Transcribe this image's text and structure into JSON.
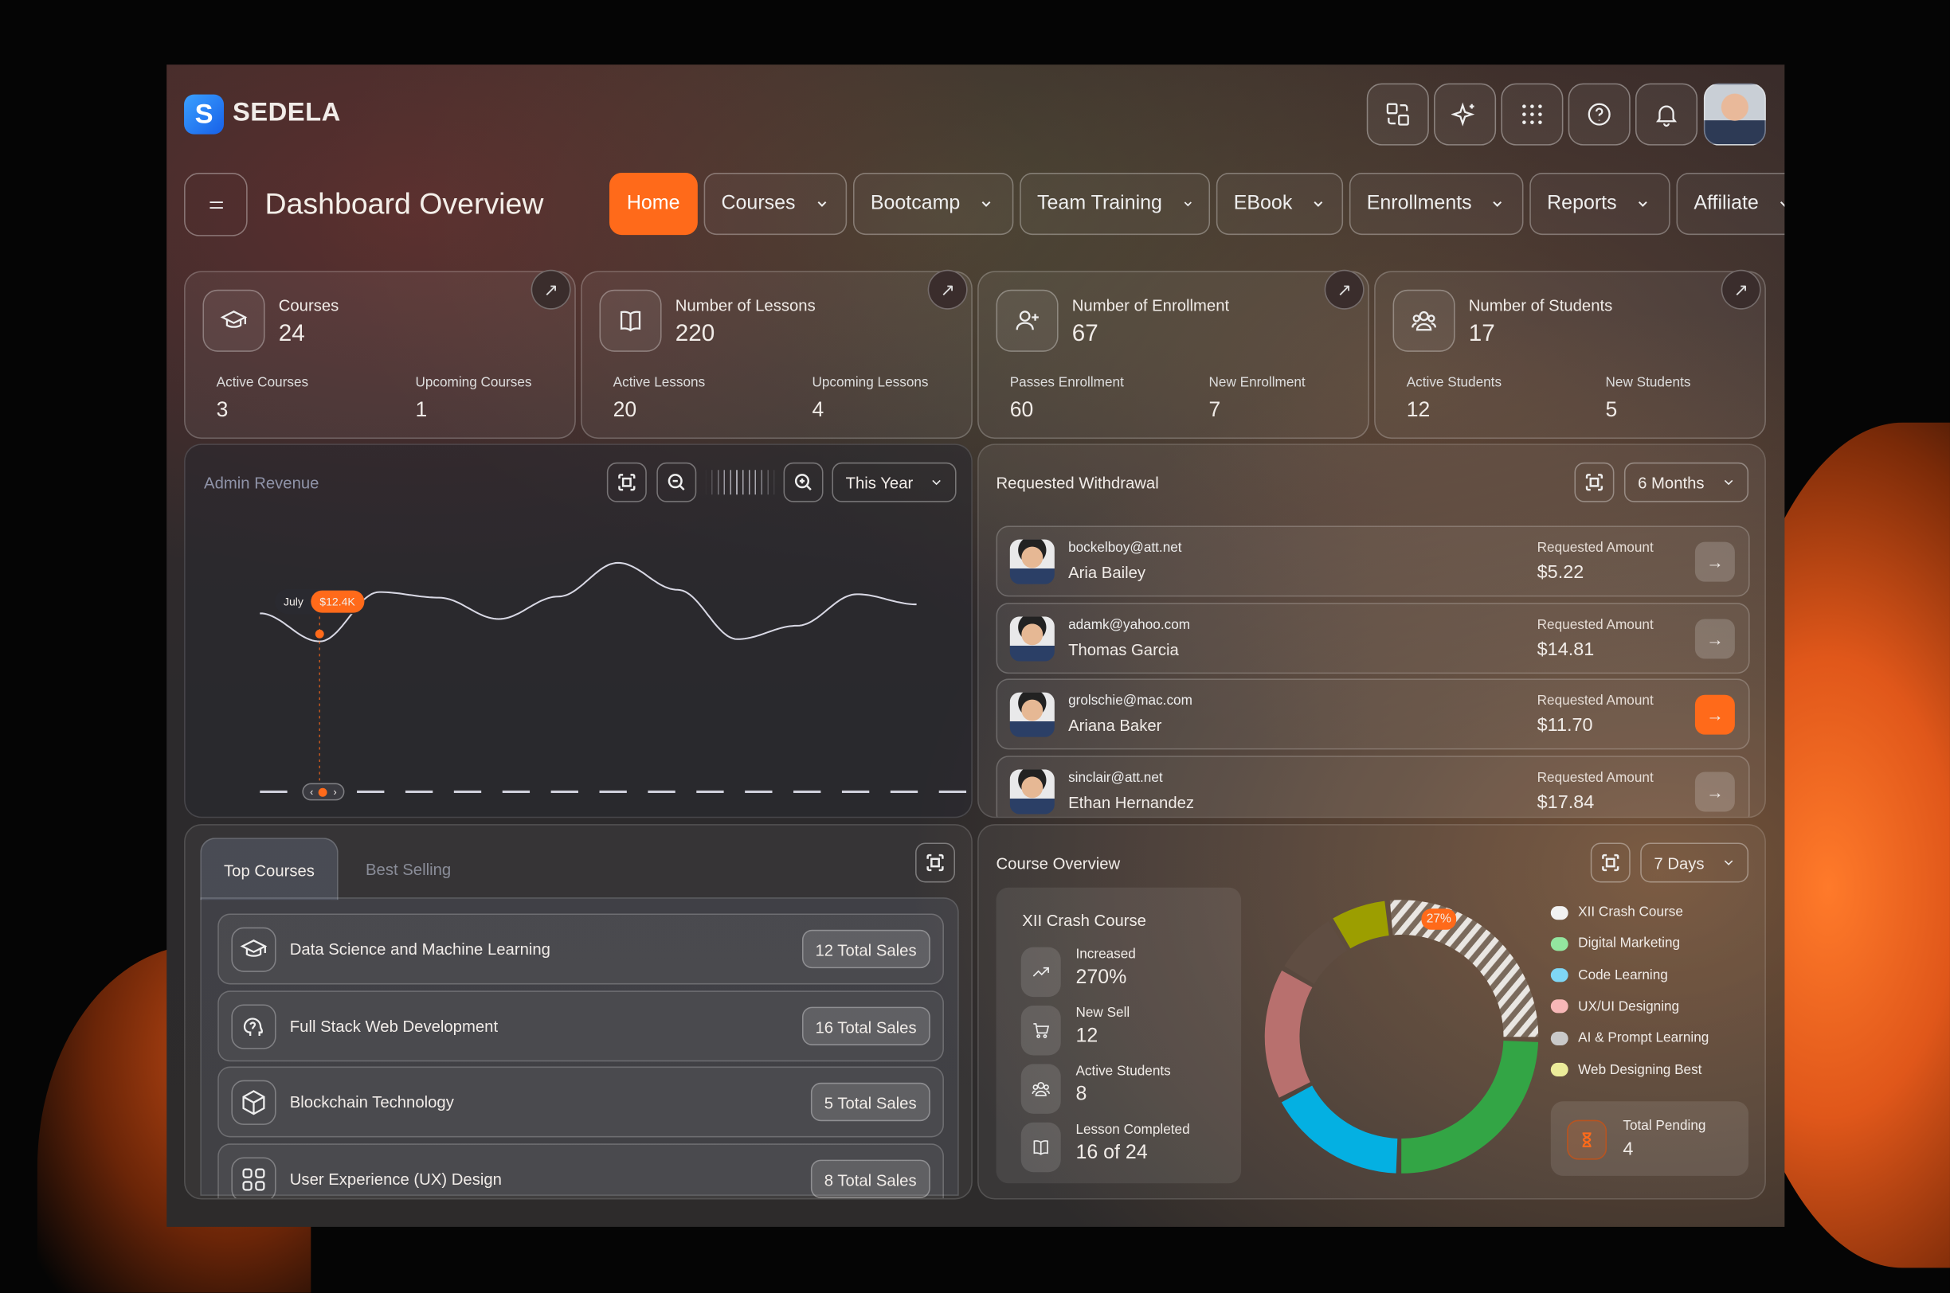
{
  "brand": {
    "logo_letter": "S",
    "name": "SEDELA"
  },
  "header": {
    "icons": [
      "language-icon",
      "sparkle-icon",
      "apps-grid-icon",
      "help-icon",
      "bell-icon",
      "user-avatar"
    ],
    "title": "Dashboard Overview"
  },
  "nav": [
    {
      "label": "Home",
      "active": true,
      "dropdown": false
    },
    {
      "label": "Courses",
      "dropdown": true
    },
    {
      "label": "Bootcamp",
      "dropdown": true
    },
    {
      "label": "Team Training",
      "dropdown": true
    },
    {
      "label": "EBook",
      "dropdown": true
    },
    {
      "label": "Enrollments",
      "dropdown": true
    },
    {
      "label": "Reports",
      "dropdown": true
    },
    {
      "label": "Affiliate",
      "dropdown": true
    }
  ],
  "stats": [
    {
      "title": "Courses",
      "value": "24",
      "icon": "graduation-cap-icon",
      "sub": [
        {
          "label": "Active Courses",
          "value": "3"
        },
        {
          "label": "Upcoming Courses",
          "value": "1"
        }
      ]
    },
    {
      "title": "Number of Lessons",
      "value": "220",
      "icon": "book-icon",
      "sub": [
        {
          "label": "Active Lessons",
          "value": "20"
        },
        {
          "label": "Upcoming Lessons",
          "value": "4"
        }
      ]
    },
    {
      "title": "Number of Enrollment",
      "value": "67",
      "icon": "user-plus-icon",
      "sub": [
        {
          "label": "Passes Enrollment",
          "value": "60"
        },
        {
          "label": "New Enrollment",
          "value": "7"
        }
      ]
    },
    {
      "title": "Number of Students",
      "value": "17",
      "icon": "users-icon",
      "sub": [
        {
          "label": "Active Students",
          "value": "12"
        },
        {
          "label": "New Students",
          "value": "5"
        }
      ]
    }
  ],
  "revenue": {
    "title": "Admin Revenue",
    "period": "This Year",
    "tooltip": {
      "label": "July",
      "value": "$12.4K"
    }
  },
  "chart_data": {
    "type": "area",
    "title": "Admin Revenue",
    "unit": "$K",
    "highlight": {
      "label": "July",
      "value": 12.4,
      "index": 1
    },
    "values": [
      14.9,
      12.4,
      16.8,
      16.3,
      14.4,
      16.4,
      19.4,
      17.0,
      12.6,
      13.8,
      16.6,
      15.7
    ],
    "grid": false
  },
  "withdrawal": {
    "title": "Requested Withdrawal",
    "period": "6 Months",
    "amount_label": "Requested Amount",
    "rows": [
      {
        "email": "bockelboy@att.net",
        "name": "Aria Bailey",
        "amount": "$5.22"
      },
      {
        "email": "adamk@yahoo.com",
        "name": "Thomas Garcia",
        "amount": "$14.81"
      },
      {
        "email": "grolschie@mac.com",
        "name": "Ariana Baker",
        "amount": "$11.70",
        "active": true
      },
      {
        "email": "sinclair@att.net",
        "name": "Ethan Hernandez",
        "amount": "$17.84"
      }
    ]
  },
  "courses": {
    "tabs": [
      "Top Courses",
      "Best Selling"
    ],
    "rows": [
      {
        "name": "Data Science and Machine Learning",
        "sales": "12 Total Sales",
        "icon": "graduation-cap-icon"
      },
      {
        "name": "Full Stack Web Development",
        "sales": "16 Total Sales",
        "icon": "brain-icon"
      },
      {
        "name": "Blockchain Technology",
        "sales": "5 Total Sales",
        "icon": "cube-icon"
      },
      {
        "name": "User Experience (UX) Design",
        "sales": "8 Total Sales",
        "icon": "components-icon"
      }
    ]
  },
  "overview": {
    "title": "Course Overview",
    "period": "7 Days",
    "course": "XII Crash Course",
    "stats": [
      {
        "label": "Increased",
        "value": "270%",
        "icon": "trend-up-icon"
      },
      {
        "label": "New Sell",
        "value": "12",
        "icon": "cart-icon"
      },
      {
        "label": "Active Students",
        "value": "8",
        "icon": "users-icon"
      },
      {
        "label": "Lesson Completed",
        "value": "16 of 24",
        "icon": "book-icon"
      }
    ],
    "donut_label": "27%",
    "legend": [
      {
        "label": "XII Crash Course",
        "color": "#f2f2f2"
      },
      {
        "label": "Digital Marketing",
        "color": "#93e59f"
      },
      {
        "label": "Code Learning",
        "color": "#7fd6f5"
      },
      {
        "label": "UX/UI Designing",
        "color": "#f7b7b7"
      },
      {
        "label": "AI & Prompt Learning",
        "color": "#c9c9c9"
      },
      {
        "label": "Web Designing Best",
        "color": "#ecec9a"
      }
    ],
    "pending": {
      "label": "Total Pending",
      "value": "4"
    }
  },
  "donut_data": {
    "type": "pie",
    "segments": [
      {
        "name": "XII Crash Course",
        "value": 27,
        "color": "hatched"
      },
      {
        "name": "Digital Marketing",
        "value": 25,
        "color": "#33a545"
      },
      {
        "name": "Code Learning",
        "value": 17,
        "color": "#04b0e2"
      },
      {
        "name": "UX/UI Designing",
        "value": 16,
        "color": "#b8706e"
      },
      {
        "name": "AI & Prompt Learning",
        "value": 8,
        "color": "#5f4d42"
      },
      {
        "name": "Web Designing Best",
        "value": 7,
        "color": "#9c9e00"
      }
    ]
  },
  "colors": {
    "accent": "#ff6a1a"
  }
}
